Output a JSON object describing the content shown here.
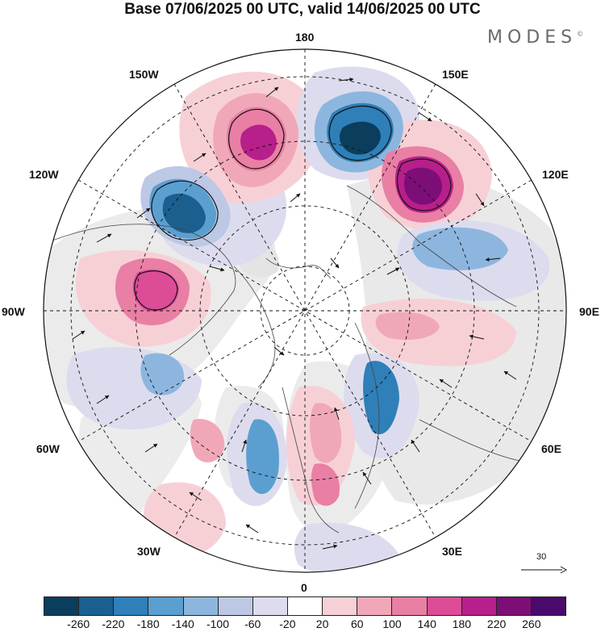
{
  "header": {
    "title": "Base 07/06/2025 00 UTC, valid 14/06/2025 00 UTC",
    "brand": "MODES",
    "brand_mark": "©"
  },
  "map": {
    "projection": "north-polar-stereographic",
    "longitude_labels": {
      "lon_180": "180",
      "lon_150E": "150E",
      "lon_120E": "120E",
      "lon_90E": "90E",
      "lon_60E": "60E",
      "lon_30E": "30E",
      "lon_0": "0",
      "lon_30W": "30W",
      "lon_60W": "60W",
      "lon_90W": "90W",
      "lon_120W": "120W",
      "lon_150W": "150W"
    },
    "reference_vector_label": "30",
    "colors": {
      "land_gray": "#e8e8e8",
      "coastline": "#444444",
      "graticule": "#111111",
      "contour": "#111111"
    }
  },
  "colorbar": {
    "ticks": [
      "-260",
      "-220",
      "-180",
      "-140",
      "-100",
      "-60",
      "-20",
      "20",
      "60",
      "100",
      "140",
      "180",
      "220",
      "260"
    ],
    "colors": [
      "#0b3d5c",
      "#1b5f8e",
      "#2f7fb8",
      "#5b9fd0",
      "#8db6de",
      "#bcc8e4",
      "#dcdcee",
      "#ffffff",
      "#f7d0d6",
      "#f0a8b8",
      "#e97fa4",
      "#dc4c97",
      "#b71f8a",
      "#7d0e78",
      "#4a0a6c"
    ]
  }
}
